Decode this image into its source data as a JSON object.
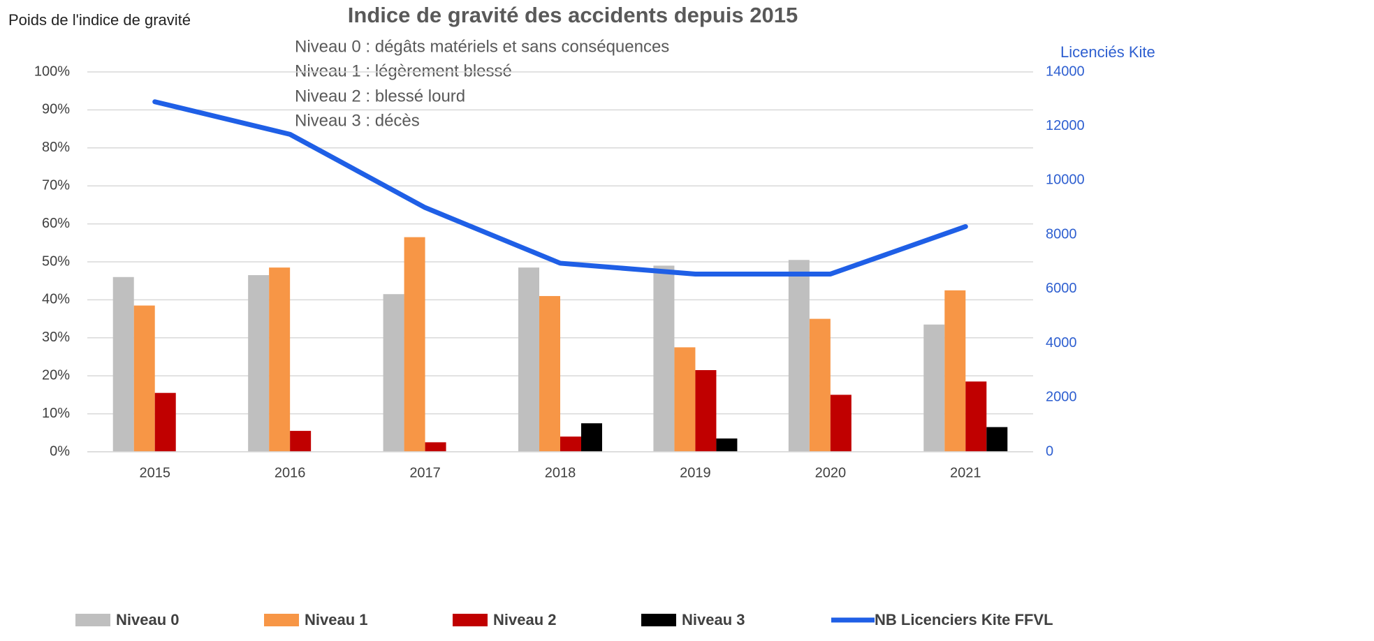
{
  "chart_data": {
    "type": "bar",
    "title": "Indice de gravité des accidents depuis 2015",
    "ylabel": "Poids de l'indice de gravité",
    "y2label": "Licenciés Kite",
    "annotations": [
      "Niveau 0 : dégâts matériels et sans conséquences",
      "Niveau 1 : légèrement blessé",
      "Niveau 2 : blessé lourd",
      "Niveau 3 : décès"
    ],
    "categories": [
      "2015",
      "2016",
      "2017",
      "2018",
      "2019",
      "2020",
      "2021"
    ],
    "series": [
      {
        "name": "Niveau 0",
        "color": "#bfbfbf",
        "values": [
          46,
          46.5,
          41.5,
          48.5,
          49,
          50.5,
          33.5
        ]
      },
      {
        "name": "Niveau 1",
        "color": "#f79646",
        "values": [
          38.5,
          48.5,
          56.5,
          41,
          27.5,
          35,
          42.5
        ]
      },
      {
        "name": "Niveau 2",
        "color": "#c00000",
        "values": [
          15.5,
          5.5,
          2.5,
          4,
          21.5,
          15,
          18.5
        ]
      },
      {
        "name": "Niveau 3",
        "color": "#000000",
        "values": [
          0,
          0,
          0,
          7.5,
          3.5,
          0,
          6.5
        ]
      },
      {
        "name": "NB Licenciers Kite FFVL",
        "color": "#1f5fe6",
        "type": "line",
        "axis": "y2",
        "values": [
          12900,
          11700,
          9000,
          6950,
          6550,
          6550,
          8300
        ]
      }
    ],
    "ylim": [
      0,
      100
    ],
    "yticks": [
      {
        "value": 0,
        "label": "0%"
      },
      {
        "value": 10,
        "label": "10%"
      },
      {
        "value": 20,
        "label": "20%"
      },
      {
        "value": 30,
        "label": "30%"
      },
      {
        "value": 40,
        "label": "40%"
      },
      {
        "value": 50,
        "label": "50%"
      },
      {
        "value": 60,
        "label": "60%"
      },
      {
        "value": 70,
        "label": "70%"
      },
      {
        "value": 80,
        "label": "80%"
      },
      {
        "value": 90,
        "label": "90%"
      },
      {
        "value": 100,
        "label": "100%"
      }
    ],
    "y2lim": [
      0,
      14000
    ],
    "y2ticks": [
      0,
      2000,
      4000,
      6000,
      8000,
      10000,
      12000,
      14000
    ],
    "grid": true,
    "legend": "bottom"
  }
}
